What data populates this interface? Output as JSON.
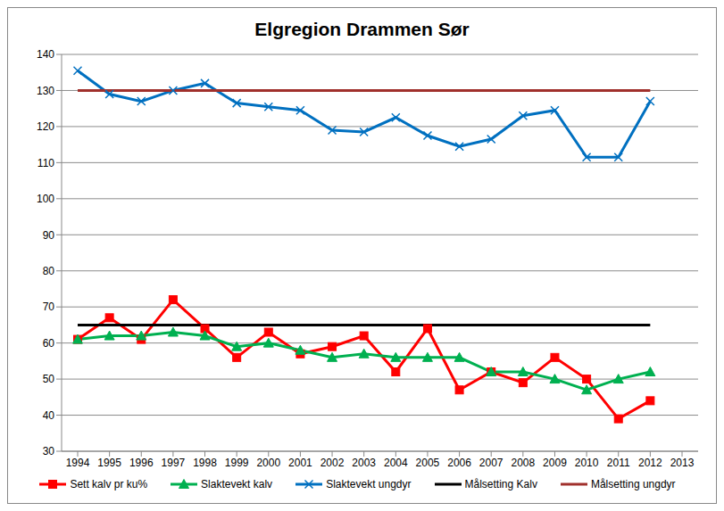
{
  "chart_data": {
    "type": "line",
    "title": "Elgregion Drammen Sør",
    "categories": [
      "1994",
      "1995",
      "1996",
      "1997",
      "1998",
      "1999",
      "2000",
      "2001",
      "2002",
      "2003",
      "2004",
      "2005",
      "2006",
      "2007",
      "2008",
      "2009",
      "2010",
      "2011",
      "2012",
      "2013"
    ],
    "series": [
      {
        "name": "Sett kalv pr ku%",
        "color": "#ff0000",
        "marker": "square",
        "values": [
          61,
          67,
          61,
          72,
          64,
          56,
          63,
          57,
          59,
          62,
          52,
          64,
          47,
          52,
          49,
          56,
          50,
          39,
          44,
          null
        ]
      },
      {
        "name": "Slaktevekt kalv",
        "color": "#00b050",
        "marker": "triangle",
        "values": [
          61,
          62,
          62,
          63,
          62,
          59,
          60,
          58,
          56,
          57,
          56,
          56,
          56,
          52,
          52,
          50,
          47,
          50,
          52,
          null
        ]
      },
      {
        "name": "Slaktevekt ungdyr",
        "color": "#0070c0",
        "marker": "x",
        "values": [
          135.5,
          129,
          127,
          130,
          132,
          126.5,
          125.5,
          124.5,
          119,
          118.5,
          122.5,
          117.5,
          114.5,
          116.5,
          123,
          124.5,
          111.5,
          111.5,
          127,
          null
        ]
      },
      {
        "name": "Målsetting Kalv",
        "color": "#000000",
        "marker": "none",
        "values": [
          65,
          65,
          65,
          65,
          65,
          65,
          65,
          65,
          65,
          65,
          65,
          65,
          65,
          65,
          65,
          65,
          65,
          65,
          65,
          null
        ]
      },
      {
        "name": "Målsetting ungdyr",
        "color": "#a0302c",
        "marker": "none",
        "values": [
          130,
          130,
          130,
          130,
          130,
          130,
          130,
          130,
          130,
          130,
          130,
          130,
          130,
          130,
          130,
          130,
          130,
          130,
          130,
          null
        ]
      }
    ],
    "ylim": [
      30,
      140
    ],
    "yticks": [
      30,
      40,
      50,
      60,
      70,
      80,
      90,
      100,
      110,
      120,
      130,
      140
    ],
    "grid": true,
    "legend": "bottom"
  }
}
